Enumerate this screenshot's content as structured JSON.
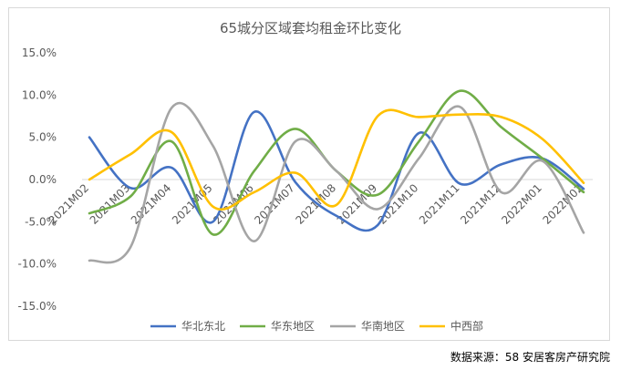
{
  "chart_data": {
    "type": "line",
    "title": "65城分区域套均租金环比变化",
    "x": [
      "2021M02",
      "2021M03",
      "2021M04",
      "2021M05",
      "2021M06",
      "2021M07",
      "2021M08",
      "2021M09",
      "2021M10",
      "2021M11",
      "2021M12",
      "2022M01",
      "2022M02"
    ],
    "yticks": [
      "15.0%",
      "10.0%",
      "5.0%",
      "0.0%",
      "-5.0%",
      "-10.0%",
      "-15.0%"
    ],
    "ylim": [
      -15,
      15
    ],
    "grid": false,
    "legend_position": "bottom",
    "series": [
      {
        "name": "华北东北",
        "color": "#4472c4",
        "values": [
          5.0,
          -1.0,
          1.4,
          -5.0,
          8.0,
          -0.3,
          -4.3,
          -5.4,
          5.5,
          -0.5,
          1.8,
          2.5,
          -1.1
        ]
      },
      {
        "name": "华东地区",
        "color": "#70ad47",
        "values": [
          -4.0,
          -2.0,
          4.5,
          -6.5,
          1.0,
          6.0,
          1.0,
          -1.8,
          4.5,
          10.5,
          6.2,
          2.5,
          -1.5
        ]
      },
      {
        "name": "华南地区",
        "color": "#a5a5a5",
        "values": [
          -9.6,
          -8.0,
          8.5,
          4.0,
          -7.3,
          4.5,
          1.0,
          -3.5,
          2.5,
          8.6,
          -1.5,
          2.2,
          -6.3
        ]
      },
      {
        "name": "中西部",
        "color": "#ffc000",
        "values": [
          0.0,
          3.0,
          5.6,
          -3.2,
          -1.5,
          0.8,
          -3.0,
          7.5,
          7.4,
          7.7,
          7.4,
          4.8,
          -0.4
        ]
      }
    ]
  },
  "source_note": "数据来源：58 安居客房产研究院"
}
